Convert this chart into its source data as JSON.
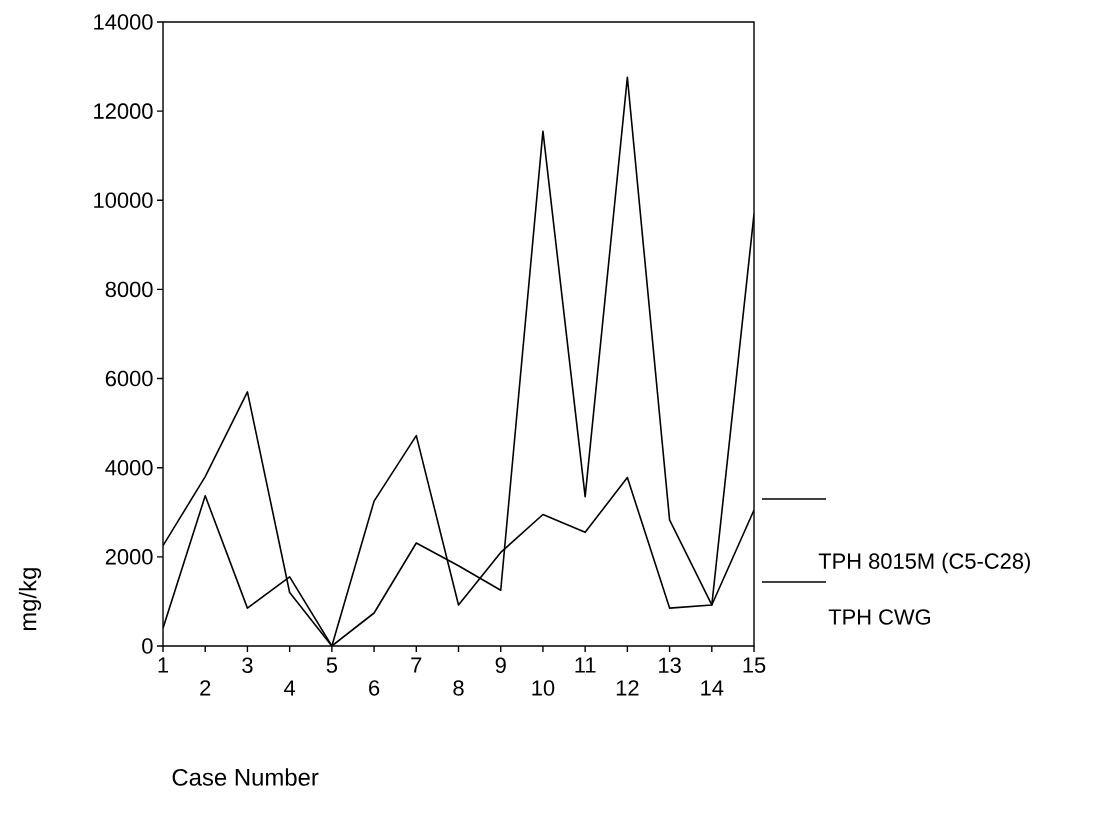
{
  "chart_data": {
    "type": "line",
    "xlabel": "Case Number",
    "ylabel": "mg/kg",
    "categories": [
      "1",
      "2",
      "3",
      "4",
      "5",
      "6",
      "7",
      "8",
      "9",
      "10",
      "11",
      "12",
      "13",
      "14",
      "15"
    ],
    "series": [
      {
        "name": "TPH 8015M (C5-C28)",
        "color": "#000000",
        "values": [
          2250,
          3800,
          5700,
          1200,
          0,
          3250,
          4720,
          920,
          2100,
          2950,
          2550,
          3780,
          850,
          920,
          3050
        ]
      },
      {
        "name": "TPH CWG",
        "color": "#000000",
        "values": [
          400,
          3370,
          850,
          1550,
          0,
          740,
          2310,
          1800,
          1250,
          11550,
          3350,
          12760,
          2830,
          920,
          9690
        ]
      }
    ],
    "ylim": [
      0,
      14000
    ],
    "yticks": [
      0,
      2000,
      4000,
      6000,
      8000,
      10000,
      12000,
      14000
    ],
    "legend": "right"
  }
}
